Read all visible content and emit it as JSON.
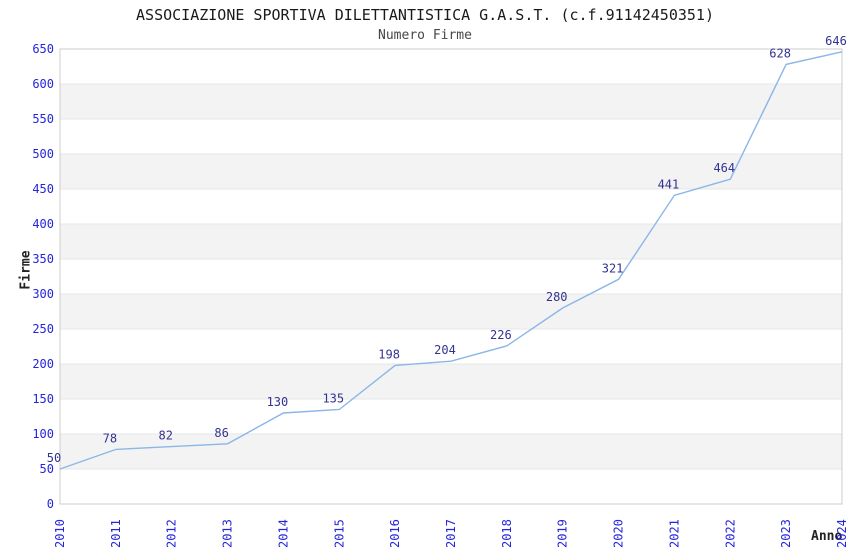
{
  "chart_data": {
    "type": "line",
    "title": "ASSOCIAZIONE SPORTIVA DILETTANTISTICA G.A.S.T. (c.f.91142450351)",
    "subtitle": "Numero Firme",
    "xlabel": "Anno",
    "ylabel": "Firme",
    "categories": [
      "2010",
      "2011",
      "2012",
      "2013",
      "2014",
      "2015",
      "2016",
      "2017",
      "2018",
      "2019",
      "2020",
      "2021",
      "2022",
      "2023",
      "2024"
    ],
    "series": [
      {
        "name": "Numero Firme",
        "values": [
          50,
          78,
          82,
          86,
          130,
          135,
          198,
          204,
          226,
          280,
          321,
          441,
          464,
          628,
          646
        ]
      }
    ],
    "ylim": [
      0,
      650
    ],
    "ytick_step": 50,
    "grid": true,
    "legend": "none",
    "band_fill": true,
    "point_labels_shown": true,
    "x_tick_rotation_deg": -90,
    "colors": {
      "line": "#8ab6e8",
      "band": "#f3f3f3",
      "grid": "#e7e7e7",
      "frame": "#cccccc",
      "tick_label": "#2525dd",
      "data_label": "#333391",
      "title": "#1a1a1a",
      "subtitle": "#474747",
      "axis_label": "#222222",
      "background": "#ffffff"
    }
  }
}
